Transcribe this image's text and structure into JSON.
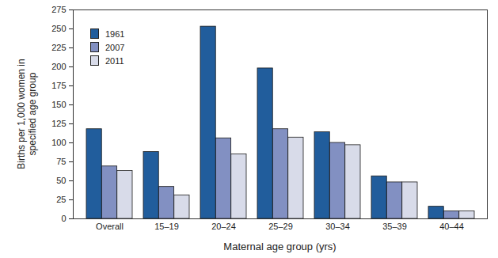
{
  "chart_data": {
    "type": "bar",
    "categories": [
      "Overall",
      "15–19",
      "20–24",
      "25–29",
      "30–34",
      "35–39",
      "40–44"
    ],
    "series": [
      {
        "name": "1961",
        "color": "#215d9c",
        "values": [
          118,
          88,
          253,
          198,
          114,
          56,
          16
        ]
      },
      {
        "name": "2007",
        "color": "#8290c2",
        "values": [
          69,
          42,
          106,
          118,
          100,
          48,
          10
        ]
      },
      {
        "name": "2011",
        "color": "#d8dbe9",
        "values": [
          63,
          31,
          85,
          107,
          97,
          48,
          10
        ]
      }
    ],
    "x_label": "Maternal age group (yrs)",
    "y_label": "Births per 1,000 women in specified age group",
    "ylim": [
      0,
      275
    ],
    "yticks": [
      0,
      25,
      50,
      75,
      100,
      125,
      150,
      175,
      200,
      225,
      250,
      275
    ],
    "legend": "top-left",
    "grid": false
  }
}
